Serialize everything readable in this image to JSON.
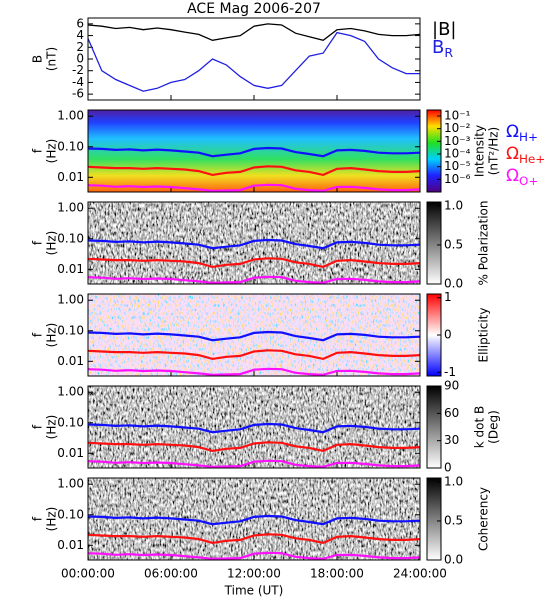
{
  "chart_data": {
    "type": "multi-panel",
    "title": "ACE Mag 2006-207",
    "xlabel": "Time (UT)",
    "x": [
      0,
      1,
      2,
      3,
      4,
      5,
      6,
      7,
      8,
      9,
      10,
      11,
      12,
      13,
      14,
      15,
      16,
      17,
      18,
      19,
      20,
      21,
      22,
      23,
      24
    ],
    "xlim": [
      0,
      24
    ],
    "xticks": [
      {
        "value": 0,
        "label": "00:00:00"
      },
      {
        "value": 6,
        "label": "06:00:00"
      },
      {
        "value": 12,
        "label": "12:00:00"
      },
      {
        "value": 18,
        "label": "18:00:00"
      },
      {
        "value": 24,
        "label": "24:00:00"
      }
    ],
    "panels": [
      {
        "type": "line",
        "ylabel": [
          "B",
          "(nT)"
        ],
        "ylim": [
          -7,
          7
        ],
        "yticks": [
          6,
          4,
          2,
          0,
          -2,
          -4,
          -6
        ],
        "series": [
          {
            "name": "|B|",
            "color": "#000000",
            "values": [
              5.8,
              5.6,
              5.2,
              5.4,
              5.0,
              5.3,
              5.0,
              4.6,
              4.2,
              3.2,
              3.6,
              4.0,
              5.6,
              6.0,
              5.8,
              4.4,
              3.8,
              3.2,
              5.0,
              5.2,
              4.8,
              4.2,
              4.0,
              4.0,
              4.2
            ]
          },
          {
            "name": "B",
            "name_sub": "R",
            "color": "#2020e0",
            "values": [
              3.5,
              -2,
              -3.5,
              -4.5,
              -5.5,
              -5,
              -4,
              -3.5,
              -2,
              0,
              -1,
              -3,
              -4.5,
              -5,
              -4.5,
              -2,
              0.5,
              1,
              4.5,
              4,
              3,
              0,
              -1.5,
              -2.5,
              -2.5
            ]
          }
        ]
      },
      {
        "type": "spectrogram",
        "texture": "rainbow",
        "ylabel": [
          "f",
          "(Hz)"
        ],
        "ylog": true,
        "ylim": [
          0.0033,
          1.6
        ],
        "yticks": [
          {
            "value": 1,
            "label": "1.00"
          },
          {
            "value": 0.1,
            "label": "0.10"
          },
          {
            "value": 0.01,
            "label": "0.01"
          }
        ],
        "colorbar": {
          "label": [
            "Intensity",
            "(nT²/Hz)"
          ],
          "colormap": "rainbow",
          "log": true,
          "clim": [
            1e-07,
            0.3
          ],
          "ticks": [
            {
              "value": 0.1,
              "label": "10⁻¹"
            },
            {
              "value": 0.01,
              "label": "10⁻²"
            },
            {
              "value": 0.001,
              "label": "10⁻³"
            },
            {
              "value": 0.0001,
              "label": "10⁻⁴"
            },
            {
              "value": 1e-05,
              "label": "10⁻⁵"
            },
            {
              "value": 1e-06,
              "label": "10⁻⁶"
            }
          ]
        },
        "series": [
          {
            "name": "Ω",
            "name_sub": "H+",
            "color": "#1010ff",
            "values": [
              0.088,
              0.085,
              0.079,
              0.082,
              0.076,
              0.081,
              0.076,
              0.07,
              0.064,
              0.049,
              0.055,
              0.061,
              0.085,
              0.091,
              0.088,
              0.067,
              0.058,
              0.049,
              0.076,
              0.079,
              0.073,
              0.064,
              0.061,
              0.061,
              0.064
            ]
          },
          {
            "name": "Ω",
            "name_sub": "He+",
            "color": "#ff1010",
            "values": [
              0.022,
              0.021,
              0.02,
              0.02,
              0.019,
              0.02,
              0.019,
              0.018,
              0.016,
              0.012,
              0.014,
              0.015,
              0.021,
              0.023,
              0.022,
              0.017,
              0.015,
              0.012,
              0.019,
              0.02,
              0.018,
              0.016,
              0.015,
              0.015,
              0.016
            ]
          },
          {
            "name": "Ω",
            "name_sub": "O+",
            "color": "#ff10ff",
            "values": [
              0.0055,
              0.0053,
              0.0049,
              0.0051,
              0.0048,
              0.005,
              0.0048,
              0.0044,
              0.004,
              0.0036,
              0.0037,
              0.0038,
              0.0053,
              0.0057,
              0.0055,
              0.0042,
              0.0038,
              0.0036,
              0.0048,
              0.0049,
              0.0045,
              0.004,
              0.0038,
              0.0038,
              0.004
            ]
          }
        ]
      },
      {
        "type": "spectrogram",
        "texture": "gray",
        "ylabel": [
          "f",
          "(Hz)"
        ],
        "ylog": true,
        "ylim": [
          0.0033,
          1.6
        ],
        "yticks": [
          {
            "value": 1,
            "label": "1.00"
          },
          {
            "value": 0.1,
            "label": "0.10"
          },
          {
            "value": 0.01,
            "label": "0.01"
          }
        ],
        "colorbar": {
          "label": [
            "% Polarization"
          ],
          "colormap": "gray",
          "clim": [
            0,
            1.05
          ],
          "ticks": [
            {
              "value": 1,
              "label": "1.0"
            },
            {
              "value": 0.5,
              "label": "0.5"
            },
            {
              "value": 0,
              "label": "0.0"
            }
          ]
        }
      },
      {
        "type": "spectrogram",
        "texture": "bwr",
        "ylabel": [
          "f",
          "(Hz)"
        ],
        "ylog": true,
        "ylim": [
          0.0033,
          1.6
        ],
        "yticks": [
          {
            "value": 1,
            "label": "1.00"
          },
          {
            "value": 0.1,
            "label": "0.10"
          },
          {
            "value": 0.01,
            "label": "0.01"
          }
        ],
        "colorbar": {
          "label": [
            "Ellipticity"
          ],
          "colormap": "bwr",
          "clim": [
            -1.1,
            1.1
          ],
          "ticks": [
            1,
            0,
            -1
          ]
        }
      },
      {
        "type": "spectrogram",
        "texture": "gray",
        "ylabel": [
          "f",
          "(Hz)"
        ],
        "ylog": true,
        "ylim": [
          0.0033,
          1.6
        ],
        "yticks": [
          {
            "value": 1,
            "label": "1.00"
          },
          {
            "value": 0.1,
            "label": "0.10"
          },
          {
            "value": 0.01,
            "label": "0.01"
          }
        ],
        "colorbar": {
          "label": [
            "k dot B",
            "(Deg)"
          ],
          "colormap": "gray",
          "clim": [
            0,
            90
          ],
          "ticks": [
            90,
            60,
            30,
            0
          ]
        }
      },
      {
        "type": "spectrogram",
        "texture": "gray",
        "ylabel": [
          "f",
          "(Hz)"
        ],
        "ylog": true,
        "ylim": [
          0.0033,
          1.6
        ],
        "yticks": [
          {
            "value": 1,
            "label": "1.00"
          },
          {
            "value": 0.1,
            "label": "0.10"
          },
          {
            "value": 0.01,
            "label": "0.01"
          }
        ],
        "colorbar": {
          "label": [
            "Coherency"
          ],
          "colormap": "gray",
          "clim": [
            0,
            1.05
          ],
          "ticks": [
            {
              "value": 1,
              "label": "1.0"
            },
            {
              "value": 0.5,
              "label": "0.5"
            },
            {
              "value": 0,
              "label": "0.0"
            }
          ]
        }
      }
    ]
  }
}
